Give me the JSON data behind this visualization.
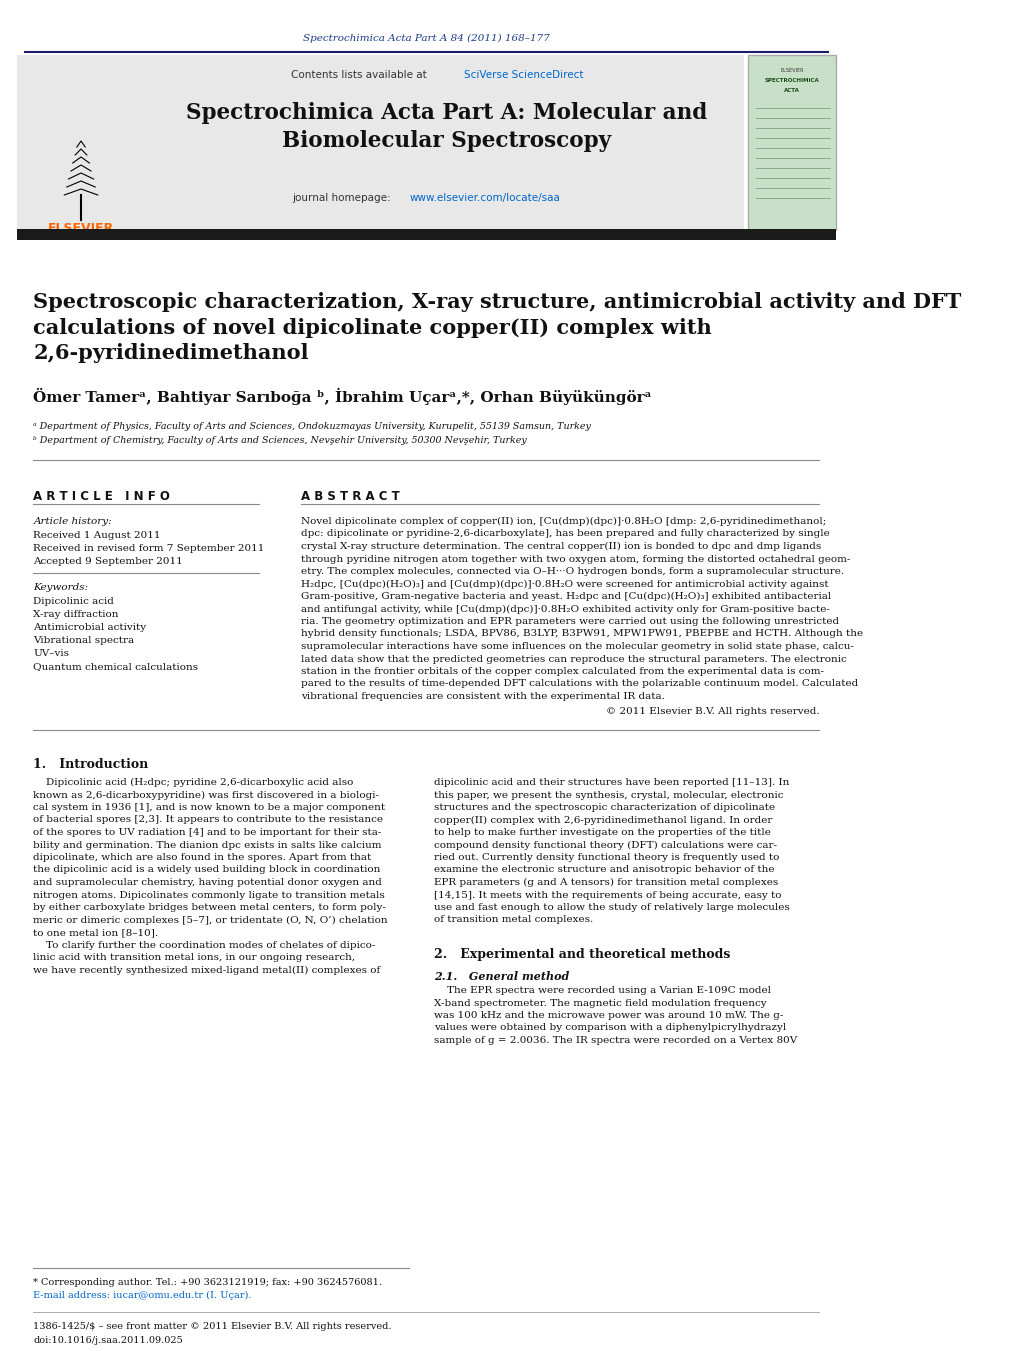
{
  "page_bg": "#ffffff",
  "top_journal_ref": "Spectrochimica Acta Part A 84 (2011) 168–177",
  "top_journal_ref_color": "#1a3a8a",
  "header_bg": "#e8e8e8",
  "header_contents_line": "Contents lists available at SciVerse ScienceDirect",
  "header_journal_title": "Spectrochimica Acta Part A: Molecular and\nBiomolecular Spectroscopy",
  "header_journal_homepage": "journal homepage: www.elsevier.com/locate/saa",
  "header_link_color": "#0066cc",
  "divider_color": "#1a1a6e",
  "paper_title": "Spectroscopic characterization, X-ray structure, antimicrobial activity and DFT\ncalculations of novel dipicolinate copper(II) complex with\n2,6-pyridinedimethanol",
  "authors": "Ömer Tamerᵃ, Bahtiyar Sarıboğa ᵇ, İbrahim Uçarᵃ,*, Orhan Büyüküngörᵃ",
  "affil_a": "ᵃ Department of Physics, Faculty of Arts and Sciences, Ondokuzmayas University, Kurupelit, 55139 Samsun, Turkey",
  "affil_b": "ᵇ Department of Chemistry, Faculty of Arts and Sciences, Nevşehir University, 50300 Nevşehir, Turkey",
  "article_info_header": "A R T I C L E   I N F O",
  "article_history_header": "Article history:",
  "received": "Received 1 August 2011",
  "received_revised": "Received in revised form 7 September 2011",
  "accepted": "Accepted 9 September 2011",
  "keywords_header": "Keywords:",
  "keywords": [
    "Dipicolinic acid",
    "X-ray diffraction",
    "Antimicrobial activity",
    "Vibrational spectra",
    "UV–vis",
    "Quantum chemical calculations"
  ],
  "abstract_header": "A B S T R A C T",
  "copyright": "© 2011 Elsevier B.V. All rights reserved.",
  "intro_header": "1.   Introduction",
  "section2_header": "2.   Experimental and theoretical methods",
  "section21_header": "2.1.   General method",
  "footnote1": "* Corresponding author. Tel.: +90 3623121919; fax: +90 3624576081.",
  "footnote2": "E-mail address: iucar@omu.edu.tr (I. Uçar).",
  "footnote3": "1386-1425/$ – see front matter © 2011 Elsevier B.V. All rights reserved.",
  "doi": "doi:10.1016/j.saa.2011.09.025",
  "abstract_lines": [
    "Novel dipicolinate complex of copper(II) ion, [Cu(dmp)(dpc)]·0.8H₂O [dmp: 2,6-pyridinedimethanol;",
    "dpc: dipicolinate or pyridine-2,6-dicarboxylate], has been prepared and fully characterized by single",
    "crystal X-ray structure determination. The central copper(II) ion is bonded to dpc and dmp ligands",
    "through pyridine nitrogen atom together with two oxygen atom, forming the distorted octahedral geom-",
    "etry. The complex molecules, connected via O–H···O hydrogen bonds, form a supramolecular structure.",
    "H₂dpc, [Cu(dpc)(H₂O)₃] and [Cu(dmp)(dpc)]·0.8H₂O were screened for antimicrobial activity against",
    "Gram-positive, Gram-negative bacteria and yeast. H₂dpc and [Cu(dpc)(H₂O)₃] exhibited antibacterial",
    "and antifungal activity, while [Cu(dmp)(dpc)]·0.8H₂O exhibited activity only for Gram-positive bacte-",
    "ria. The geometry optimization and EPR parameters were carried out using the following unrestricted",
    "hybrid density functionals; LSDA, BPV86, B3LYP, B3PW91, MPW1PW91, PBEPBE and HCTH. Although the",
    "supramolecular interactions have some influences on the molecular geometry in solid state phase, calcu-",
    "lated data show that the predicted geometries can reproduce the structural parameters. The electronic",
    "station in the frontier orbitals of the copper complex calculated from the experimental data is com-",
    "pared to the results of time-depended DFT calculations with the polarizable continuum model. Calculated",
    "vibrational frequencies are consistent with the experimental IR data."
  ],
  "intro_col1_lines": [
    "    Dipicolinic acid (H₂dpc; pyridine 2,6-dicarboxylic acid also",
    "known as 2,6-dicarboxypyridine) was first discovered in a biologi-",
    "cal system in 1936 [1], and is now known to be a major component",
    "of bacterial spores [2,3]. It appears to contribute to the resistance",
    "of the spores to UV radiation [4] and to be important for their sta-",
    "bility and germination. The dianion dpc exists in salts like calcium",
    "dipicolinate, which are also found in the spores. Apart from that",
    "the dipicolinic acid is a widely used building block in coordination",
    "and supramolecular chemistry, having potential donor oxygen and",
    "nitrogen atoms. Dipicolinates commonly ligate to transition metals",
    "by either carboxylate bridges between metal centers, to form poly-",
    "meric or dimeric complexes [5–7], or tridentate (O, N, O’) chelation",
    "to one metal ion [8–10].",
    "    To clarify further the coordination modes of chelates of dipico-",
    "linic acid with transition metal ions, in our ongoing research,",
    "we have recently synthesized mixed-ligand metal(II) complexes of"
  ],
  "intro_col2_lines": [
    "dipicolinic acid and their structures have been reported [11–13]. In",
    "this paper, we present the synthesis, crystal, molecular, electronic",
    "structures and the spectroscopic characterization of dipicolinate",
    "copper(II) complex with 2,6-pyridinedimethanol ligand. In order",
    "to help to make further investigate on the properties of the title",
    "compound density functional theory (DFT) calculations were car-",
    "ried out. Currently density functional theory is frequently used to",
    "examine the electronic structure and anisotropic behavior of the",
    "EPR parameters (g and A tensors) for transition metal complexes",
    "[14,15]. It meets with the requirements of being accurate, easy to",
    "use and fast enough to allow the study of relatively large molecules",
    "of transition metal complexes."
  ],
  "section21_lines": [
    "    The EPR spectra were recorded using a Varian E-109C model",
    "X-band spectrometer. The magnetic field modulation frequency",
    "was 100 kHz and the microwave power was around 10 mW. The g-",
    "values were obtained by comparison with a diphenylpicrylhydrazyl",
    "sample of g = 2.0036. The IR spectra were recorded on a Vertex 80V"
  ]
}
